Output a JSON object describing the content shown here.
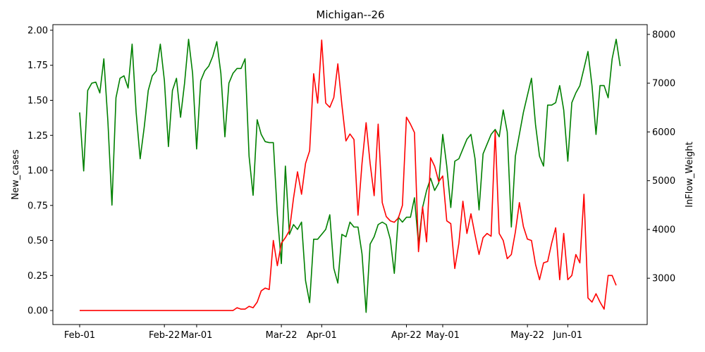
{
  "chart_data": {
    "type": "line",
    "title": "Michigan--26",
    "ylabel_left": "New_cases",
    "ylabel_right": "InFlow_Weight",
    "x_start": "2020-02-01",
    "x_ticks": [
      "Feb-01",
      "Feb-22",
      "Mar-01",
      "Mar-22",
      "Apr-01",
      "Apr-22",
      "May-01",
      "May-22",
      "Jun-01"
    ],
    "x_tick_days": [
      0,
      21,
      29,
      50,
      60,
      81,
      90,
      111,
      121
    ],
    "y_left_ticks": [
      "0.00",
      "0.25",
      "0.50",
      "0.75",
      "1.00",
      "1.25",
      "1.50",
      "1.75",
      "2.00"
    ],
    "y_right_ticks": [
      "3000",
      "4000",
      "5000",
      "6000",
      "7000",
      "8000"
    ],
    "ylim_left": [
      -0.1,
      2.04
    ],
    "ylim_right": [
      2050,
      8200
    ],
    "grid": false,
    "series": [
      {
        "axis": "right",
        "color": "#008000",
        "points": [
          [
            0,
            6400
          ],
          [
            1,
            5200
          ],
          [
            2,
            6850
          ],
          [
            3,
            7000
          ],
          [
            4,
            7020
          ],
          [
            5,
            6800
          ],
          [
            6,
            7500
          ],
          [
            7,
            6200
          ],
          [
            8,
            4500
          ],
          [
            9,
            6700
          ],
          [
            10,
            7100
          ],
          [
            11,
            7150
          ],
          [
            12,
            6900
          ],
          [
            13,
            7800
          ],
          [
            14,
            6400
          ],
          [
            15,
            5450
          ],
          [
            16,
            6100
          ],
          [
            17,
            6850
          ],
          [
            18,
            7150
          ],
          [
            19,
            7250
          ],
          [
            20,
            7800
          ],
          [
            21,
            7050
          ],
          [
            22,
            5700
          ],
          [
            23,
            6850
          ],
          [
            24,
            7100
          ],
          [
            25,
            6300
          ],
          [
            26,
            7000
          ],
          [
            27,
            7900
          ],
          [
            28,
            7200
          ],
          [
            29,
            5650
          ],
          [
            30,
            7050
          ],
          [
            31,
            7250
          ],
          [
            32,
            7350
          ],
          [
            33,
            7550
          ],
          [
            34,
            7850
          ],
          [
            35,
            7200
          ],
          [
            36,
            5900
          ],
          [
            37,
            7000
          ],
          [
            38,
            7200
          ],
          [
            39,
            7300
          ],
          [
            40,
            7300
          ],
          [
            41,
            7500
          ],
          [
            42,
            5500
          ],
          [
            43,
            4700
          ],
          [
            44,
            6250
          ],
          [
            45,
            5950
          ],
          [
            46,
            5800
          ],
          [
            47,
            5780
          ],
          [
            48,
            5780
          ],
          [
            49,
            4300
          ],
          [
            50,
            3300
          ],
          [
            51,
            5300
          ],
          [
            52,
            3900
          ],
          [
            53,
            4100
          ],
          [
            54,
            4000
          ],
          [
            55,
            4150
          ],
          [
            56,
            2950
          ],
          [
            57,
            2500
          ],
          [
            58,
            3800
          ],
          [
            59,
            3800
          ],
          [
            60,
            3900
          ],
          [
            61,
            4000
          ],
          [
            62,
            4300
          ],
          [
            63,
            3200
          ],
          [
            64,
            2900
          ],
          [
            65,
            3900
          ],
          [
            66,
            3850
          ],
          [
            67,
            4150
          ],
          [
            68,
            4050
          ],
          [
            69,
            4050
          ],
          [
            70,
            3500
          ],
          [
            71,
            2300
          ],
          [
            72,
            3700
          ],
          [
            73,
            3850
          ],
          [
            74,
            4100
          ],
          [
            75,
            4150
          ],
          [
            76,
            4100
          ],
          [
            77,
            3800
          ],
          [
            78,
            3100
          ],
          [
            79,
            4250
          ],
          [
            80,
            4150
          ],
          [
            81,
            4250
          ],
          [
            82,
            4250
          ],
          [
            83,
            4650
          ],
          [
            84,
            3700
          ],
          [
            85,
            4450
          ],
          [
            86,
            4800
          ],
          [
            87,
            5050
          ],
          [
            88,
            4800
          ],
          [
            89,
            4950
          ],
          [
            90,
            5950
          ],
          [
            91,
            5300
          ],
          [
            92,
            4450
          ],
          [
            93,
            5400
          ],
          [
            94,
            5450
          ],
          [
            95,
            5650
          ],
          [
            96,
            5850
          ],
          [
            97,
            5950
          ],
          [
            98,
            5450
          ],
          [
            99,
            4400
          ],
          [
            100,
            5550
          ],
          [
            101,
            5750
          ],
          [
            102,
            5950
          ],
          [
            103,
            6050
          ],
          [
            104,
            5900
          ],
          [
            105,
            6450
          ],
          [
            106,
            6000
          ],
          [
            107,
            4050
          ],
          [
            108,
            5500
          ],
          [
            109,
            5950
          ],
          [
            110,
            6400
          ],
          [
            111,
            6750
          ],
          [
            112,
            7100
          ],
          [
            113,
            6150
          ],
          [
            114,
            5500
          ],
          [
            115,
            5300
          ],
          [
            116,
            6550
          ],
          [
            117,
            6550
          ],
          [
            118,
            6600
          ],
          [
            119,
            6950
          ],
          [
            120,
            6450
          ],
          [
            121,
            5400
          ],
          [
            122,
            6600
          ],
          [
            123,
            6800
          ],
          [
            124,
            6950
          ],
          [
            125,
            7300
          ],
          [
            126,
            7650
          ],
          [
            127,
            6950
          ],
          [
            128,
            5950
          ],
          [
            129,
            6950
          ],
          [
            130,
            6950
          ],
          [
            131,
            6700
          ],
          [
            132,
            7500
          ],
          [
            133,
            7900
          ],
          [
            134,
            7350
          ]
        ]
      },
      {
        "axis": "left",
        "color": "#ff0000",
        "points": [
          [
            0,
            0
          ],
          [
            1,
            0
          ],
          [
            2,
            0
          ],
          [
            3,
            0
          ],
          [
            4,
            0
          ],
          [
            5,
            0
          ],
          [
            6,
            0
          ],
          [
            7,
            0
          ],
          [
            8,
            0
          ],
          [
            9,
            0
          ],
          [
            10,
            0
          ],
          [
            11,
            0
          ],
          [
            12,
            0
          ],
          [
            13,
            0
          ],
          [
            14,
            0
          ],
          [
            15,
            0
          ],
          [
            16,
            0
          ],
          [
            17,
            0
          ],
          [
            18,
            0
          ],
          [
            19,
            0
          ],
          [
            20,
            0
          ],
          [
            21,
            0
          ],
          [
            22,
            0
          ],
          [
            23,
            0
          ],
          [
            24,
            0
          ],
          [
            25,
            0
          ],
          [
            26,
            0
          ],
          [
            27,
            0
          ],
          [
            28,
            0
          ],
          [
            29,
            0
          ],
          [
            30,
            0
          ],
          [
            31,
            0
          ],
          [
            32,
            0
          ],
          [
            33,
            0
          ],
          [
            34,
            0
          ],
          [
            35,
            0
          ],
          [
            36,
            0
          ],
          [
            37,
            0
          ],
          [
            38,
            0
          ],
          [
            39,
            0.02
          ],
          [
            40,
            0.01
          ],
          [
            41,
            0.01
          ],
          [
            42,
            0.03
          ],
          [
            43,
            0.02
          ],
          [
            44,
            0.06
          ],
          [
            45,
            0.14
          ],
          [
            46,
            0.16
          ],
          [
            47,
            0.15
          ],
          [
            48,
            0.5
          ],
          [
            49,
            0.32
          ],
          [
            50,
            0.48
          ],
          [
            51,
            0.52
          ],
          [
            52,
            0.57
          ],
          [
            53,
            0.8
          ],
          [
            54,
            0.99
          ],
          [
            55,
            0.83
          ],
          [
            56,
            1.05
          ],
          [
            57,
            1.14
          ],
          [
            58,
            1.69
          ],
          [
            59,
            1.48
          ],
          [
            60,
            1.93
          ],
          [
            61,
            1.48
          ],
          [
            62,
            1.45
          ],
          [
            63,
            1.52
          ],
          [
            64,
            1.76
          ],
          [
            65,
            1.47
          ],
          [
            66,
            1.21
          ],
          [
            67,
            1.26
          ],
          [
            68,
            1.22
          ],
          [
            69,
            0.68
          ],
          [
            70,
            1.05
          ],
          [
            71,
            1.34
          ],
          [
            72,
            1.05
          ],
          [
            73,
            0.82
          ],
          [
            74,
            1.33
          ],
          [
            75,
            0.77
          ],
          [
            76,
            0.67
          ],
          [
            77,
            0.64
          ],
          [
            78,
            0.63
          ],
          [
            79,
            0.66
          ],
          [
            80,
            0.75
          ],
          [
            81,
            1.38
          ],
          [
            82,
            1.33
          ],
          [
            83,
            1.27
          ],
          [
            84,
            0.42
          ],
          [
            85,
            0.74
          ],
          [
            86,
            0.49
          ],
          [
            87,
            1.09
          ],
          [
            88,
            1.03
          ],
          [
            89,
            0.92
          ],
          [
            90,
            0.96
          ],
          [
            91,
            0.64
          ],
          [
            92,
            0.62
          ],
          [
            93,
            0.3
          ],
          [
            94,
            0.48
          ],
          [
            95,
            0.78
          ],
          [
            96,
            0.55
          ],
          [
            97,
            0.69
          ],
          [
            98,
            0.54
          ],
          [
            99,
            0.4
          ],
          [
            100,
            0.52
          ],
          [
            101,
            0.55
          ],
          [
            102,
            0.53
          ],
          [
            103,
            1.28
          ],
          [
            104,
            0.55
          ],
          [
            105,
            0.5
          ],
          [
            106,
            0.37
          ],
          [
            107,
            0.4
          ],
          [
            108,
            0.56
          ],
          [
            109,
            0.77
          ],
          [
            110,
            0.6
          ],
          [
            111,
            0.51
          ],
          [
            112,
            0.5
          ],
          [
            113,
            0.33
          ],
          [
            114,
            0.22
          ],
          [
            115,
            0.34
          ],
          [
            116,
            0.35
          ],
          [
            117,
            0.48
          ],
          [
            118,
            0.59
          ],
          [
            119,
            0.22
          ],
          [
            120,
            0.55
          ],
          [
            121,
            0.22
          ],
          [
            122,
            0.25
          ],
          [
            123,
            0.4
          ],
          [
            124,
            0.34
          ],
          [
            125,
            0.83
          ],
          [
            126,
            0.09
          ],
          [
            127,
            0.06
          ],
          [
            128,
            0.12
          ],
          [
            129,
            0.06
          ],
          [
            130,
            0.01
          ],
          [
            131,
            0.25
          ],
          [
            132,
            0.25
          ],
          [
            133,
            0.18
          ]
        ]
      }
    ]
  }
}
